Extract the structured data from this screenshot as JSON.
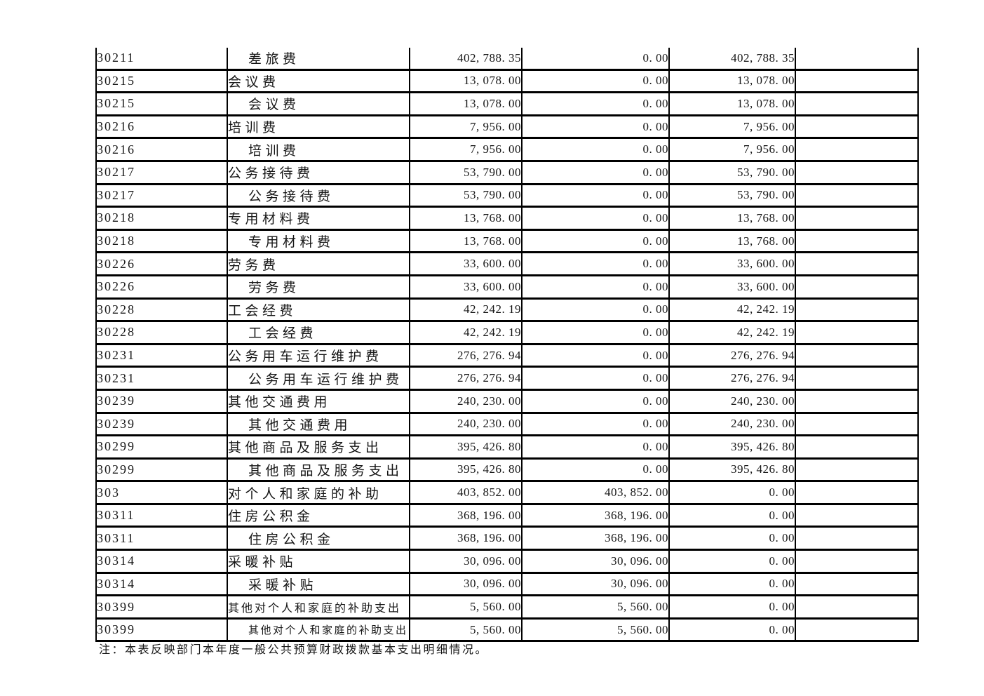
{
  "page": {
    "note": "注：本表反映部门本年度一般公共预算财政拨款基本支出明细情况。"
  },
  "table": {
    "rows": [
      {
        "code": "30211",
        "name": "差旅费",
        "indent": true,
        "c3": "402, 788. 35",
        "c4": "0. 00",
        "c5": "402, 788. 35"
      },
      {
        "code": "30215",
        "name": "会议费",
        "indent": false,
        "c3": "13, 078. 00",
        "c4": "0. 00",
        "c5": "13, 078. 00"
      },
      {
        "code": "30215",
        "name": "会议费",
        "indent": true,
        "c3": "13, 078. 00",
        "c4": "0. 00",
        "c5": "13, 078. 00"
      },
      {
        "code": "30216",
        "name": "培训费",
        "indent": false,
        "c3": "7, 956. 00",
        "c4": "0. 00",
        "c5": "7, 956. 00"
      },
      {
        "code": "30216",
        "name": "培训费",
        "indent": true,
        "c3": "7, 956. 00",
        "c4": "0. 00",
        "c5": "7, 956. 00"
      },
      {
        "code": "30217",
        "name": "公务接待费",
        "indent": false,
        "c3": "53, 790. 00",
        "c4": "0. 00",
        "c5": "53, 790. 00"
      },
      {
        "code": "30217",
        "name": "公务接待费",
        "indent": true,
        "c3": "53, 790. 00",
        "c4": "0. 00",
        "c5": "53, 790. 00"
      },
      {
        "code": "30218",
        "name": "专用材料费",
        "indent": false,
        "c3": "13, 768. 00",
        "c4": "0. 00",
        "c5": "13, 768. 00"
      },
      {
        "code": "30218",
        "name": "专用材料费",
        "indent": true,
        "c3": "13, 768. 00",
        "c4": "0. 00",
        "c5": "13, 768. 00"
      },
      {
        "code": "30226",
        "name": "劳务费",
        "indent": false,
        "c3": "33, 600. 00",
        "c4": "0. 00",
        "c5": "33, 600. 00"
      },
      {
        "code": "30226",
        "name": "劳务费",
        "indent": true,
        "c3": "33, 600. 00",
        "c4": "0. 00",
        "c5": "33, 600. 00"
      },
      {
        "code": "30228",
        "name": "工会经费",
        "indent": false,
        "c3": "42, 242. 19",
        "c4": "0. 00",
        "c5": "42, 242. 19"
      },
      {
        "code": "30228",
        "name": "工会经费",
        "indent": true,
        "c3": "42, 242. 19",
        "c4": "0. 00",
        "c5": "42, 242. 19"
      },
      {
        "code": "30231",
        "name": "公务用车运行维护费",
        "indent": false,
        "c3": "276, 276. 94",
        "c4": "0. 00",
        "c5": "276, 276. 94"
      },
      {
        "code": "30231",
        "name": "公务用车运行维护费",
        "indent": true,
        "c3": "276, 276. 94",
        "c4": "0. 00",
        "c5": "276, 276. 94"
      },
      {
        "code": "30239",
        "name": "其他交通费用",
        "indent": false,
        "c3": "240, 230. 00",
        "c4": "0. 00",
        "c5": "240, 230. 00"
      },
      {
        "code": "30239",
        "name": "其他交通费用",
        "indent": true,
        "c3": "240, 230. 00",
        "c4": "0. 00",
        "c5": "240, 230. 00"
      },
      {
        "code": "30299",
        "name": "其他商品及服务支出",
        "indent": false,
        "c3": "395, 426. 80",
        "c4": "0. 00",
        "c5": "395, 426. 80"
      },
      {
        "code": "30299",
        "name": "其他商品及服务支出",
        "indent": true,
        "c3": "395, 426. 80",
        "c4": "0. 00",
        "c5": "395, 426. 80"
      },
      {
        "code": "303",
        "name": "对个人和家庭的补助",
        "indent": false,
        "c3": "403, 852. 00",
        "c4": "403, 852. 00",
        "c5": "0. 00"
      },
      {
        "code": "30311",
        "name": "住房公积金",
        "indent": false,
        "c3": "368, 196. 00",
        "c4": "368, 196. 00",
        "c5": "0. 00"
      },
      {
        "code": "30311",
        "name": "住房公积金",
        "indent": true,
        "c3": "368, 196. 00",
        "c4": "368, 196. 00",
        "c5": "0. 00"
      },
      {
        "code": "30314",
        "name": "采暖补贴",
        "indent": false,
        "c3": "30, 096. 00",
        "c4": "30, 096. 00",
        "c5": "0. 00"
      },
      {
        "code": "30314",
        "name": "采暖补贴",
        "indent": true,
        "c3": "30, 096. 00",
        "c4": "30, 096. 00",
        "c5": "0. 00"
      },
      {
        "code": "30399",
        "name": "其他对个人和家庭的补助支出",
        "indent": false,
        "c3": "5, 560. 00",
        "c4": "5, 560. 00",
        "c5": "0. 00"
      },
      {
        "code": "30399",
        "name": "其他对个人和家庭的补助支出",
        "indent": true,
        "c3": "5, 560. 00",
        "c4": "5, 560. 00",
        "c5": "0. 00"
      }
    ]
  }
}
